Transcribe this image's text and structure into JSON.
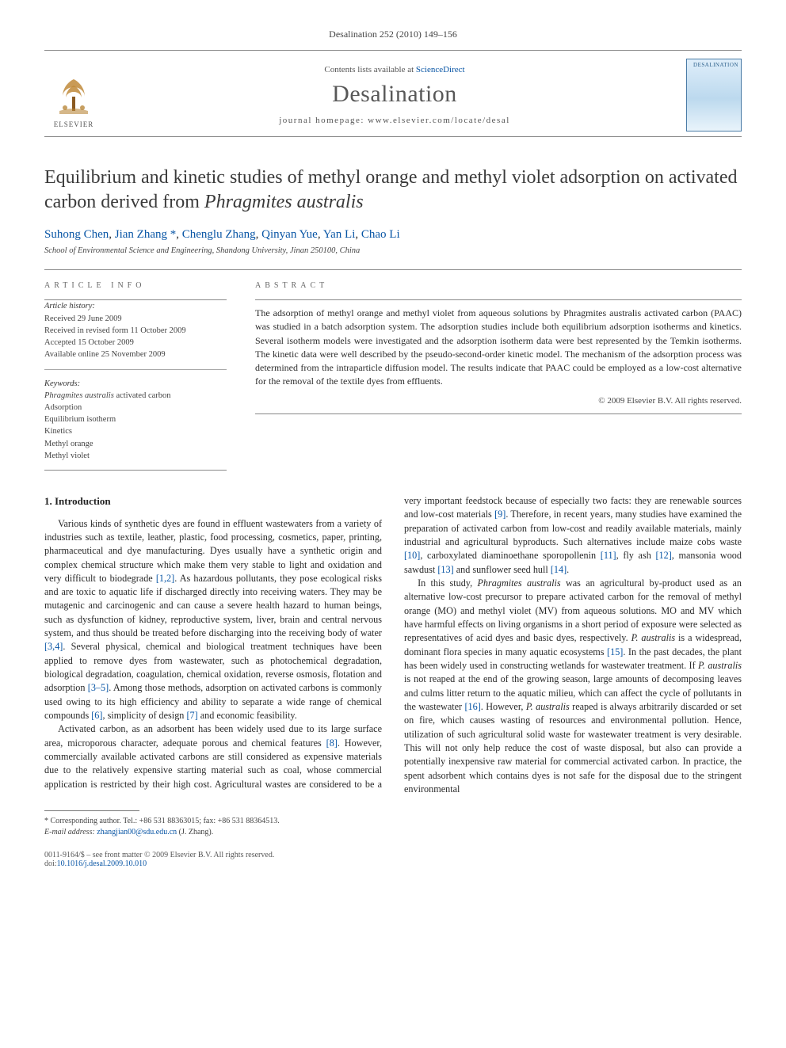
{
  "runningHead": "Desalination 252 (2010) 149–156",
  "masthead": {
    "contentsPrefix": "Contents lists available at ",
    "contentsLink": "ScienceDirect",
    "journal": "Desalination",
    "homepagePrefix": "journal homepage: ",
    "homepage": "www.elsevier.com/locate/desal",
    "publisherWord": "ELSEVIER",
    "coverLabel": "DESALINATION"
  },
  "title": {
    "pre": "Equilibrium and kinetic studies of methyl orange and methyl violet adsorption on activated carbon derived from ",
    "species": "Phragmites australis"
  },
  "authors": [
    "Suhong Chen",
    "Jian Zhang",
    "Chenglu Zhang",
    "Qinyan Yue",
    "Yan Li",
    "Chao Li"
  ],
  "corrIndex": 1,
  "corrMark": "*",
  "affiliation": "School of Environmental Science and Engineering, Shandong University, Jinan 250100, China",
  "info": {
    "label": "ARTICLE INFO",
    "historyHead": "Article history:",
    "history": [
      "Received 29 June 2009",
      "Received in revised form 11 October 2009",
      "Accepted 15 October 2009",
      "Available online 25 November 2009"
    ],
    "keywordsHead": "Keywords:",
    "keywords": [
      "Phragmites australis activated carbon",
      "Adsorption",
      "Equilibrium isotherm",
      "Kinetics",
      "Methyl orange",
      "Methyl violet"
    ]
  },
  "abstract": {
    "label": "ABSTRACT",
    "text": "The adsorption of methyl orange and methyl violet from aqueous solutions by Phragmites australis activated carbon (PAAC) was studied in a batch adsorption system. The adsorption studies include both equilibrium adsorption isotherms and kinetics. Several isotherm models were investigated and the adsorption isotherm data were best represented by the Temkin isotherms. The kinetic data were well described by the pseudo-second-order kinetic model. The mechanism of the adsorption process was determined from the intraparticle diffusion model. The results indicate that PAAC could be employed as a low-cost alternative for the removal of the textile dyes from effluents.",
    "copyright": "© 2009 Elsevier B.V. All rights reserved."
  },
  "body": {
    "heading": "1. Introduction",
    "p1a": "Various kinds of synthetic dyes are found in effluent wastewaters from a variety of industries such as textile, leather, plastic, food processing, cosmetics, paper, printing, pharmaceutical and dye manufacturing. Dyes usually have a synthetic origin and complex chemical structure which make them very stable to light and oxidation and very difficult to biodegrade ",
    "r1": "[1,2]",
    "p1b": ". As hazardous pollutants, they pose ecological risks and are toxic to aquatic life if discharged directly into receiving waters. They may be mutagenic and carcinogenic and can cause a severe health hazard to human beings, such as dysfunction of kidney, reproductive system, liver, brain and central nervous system, and thus should be treated before discharging into the receiving body of water ",
    "r2": "[3,4]",
    "p1c": ". Several physical, chemical and biological treatment techniques have been applied to remove dyes from wastewater, such as photochemical degradation, biological degradation, coagulation, chemical oxidation, reverse osmosis, flotation and adsorption ",
    "r3": "[3–5]",
    "p1d": ". Among those methods, adsorption on activated carbons is commonly used owing to its high efficiency and ability to separate a wide range of chemical compounds ",
    "r4": "[6]",
    "p1e": ", simplicity of design ",
    "r5": "[7]",
    "p1f": " and economic feasibility.",
    "p2a": "Activated carbon, as an adsorbent has been widely used due to its large surface area, microporous character, adequate porous and chemical features ",
    "r6": "[8]",
    "p2b": ". However, commercially available activated carbons are still considered as expensive materials due to the relatively expensive starting material such as coal, whose commercial application is restricted by their high cost. Agricultural wastes are considered to be a very important feedstock because of especially two facts: they are renewable sources and low-cost materials ",
    "r7": "[9]",
    "p2c": ". Therefore, in recent years, many studies have examined the preparation of activated carbon from low-cost and readily available materials, mainly industrial and agricultural byproducts. Such alternatives include maize cobs waste ",
    "r8": "[10]",
    "p2d": ", carboxylated diaminoethane sporopollenin ",
    "r9": "[11]",
    "p2e": ", fly ash ",
    "r10": "[12]",
    "p2f": ", mansonia wood sawdust ",
    "r11": "[13]",
    "p2g": " and sunflower seed hull ",
    "r12": "[14]",
    "p2h": ".",
    "p3a": "In this study, ",
    "sp1": "Phragmites australis",
    "p3b": " was an agricultural by-product used as an alternative low-cost precursor to prepare activated carbon for the removal of methyl orange (MO) and methyl violet (MV) from aqueous solutions. MO and MV which have harmful effects on living organisms in a short period of exposure were selected as representatives of acid dyes and basic dyes, respectively. ",
    "sp2": "P. australis",
    "p3c": " is a widespread, dominant flora species in many aquatic ecosystems ",
    "r13": "[15]",
    "p3d": ". In the past decades, the plant has been widely used in constructing wetlands for wastewater treatment. If ",
    "sp3": "P. australis",
    "p3e": " is not reaped at the end of the growing season, large amounts of decomposing leaves and culms litter return to the aquatic milieu, which can affect the cycle of pollutants in the wastewater ",
    "r14": "[16]",
    "p3f": ". However, ",
    "sp4": "P. australis",
    "p3g": " reaped is always arbitrarily discarded or set on fire, which causes wasting of resources and environmental pollution. Hence, utilization of such agricultural solid waste for wastewater treatment is very desirable. This will not only help reduce the cost of waste disposal, but also can provide a potentially inexpensive raw material for commercial activated carbon. In practice, the spent adsorbent which contains dyes is not safe for the disposal due to the stringent environmental"
  },
  "footnote": {
    "mark": "*",
    "line1": " Corresponding author. Tel.: +86 531 88363015; fax: +86 531 88364513.",
    "emailLabel": "E-mail address: ",
    "email": "zhangjian00@sdu.edu.cn",
    "emailSuffix": " (J. Zhang)."
  },
  "bottom": {
    "left": "0011-9164/$ – see front matter © 2009 Elsevier B.V. All rights reserved.",
    "doiLabel": "doi:",
    "doi": "10.1016/j.desal.2009.10.010"
  },
  "colors": {
    "link": "#0855a5",
    "rule": "#888888",
    "text": "#2a2a2a"
  }
}
